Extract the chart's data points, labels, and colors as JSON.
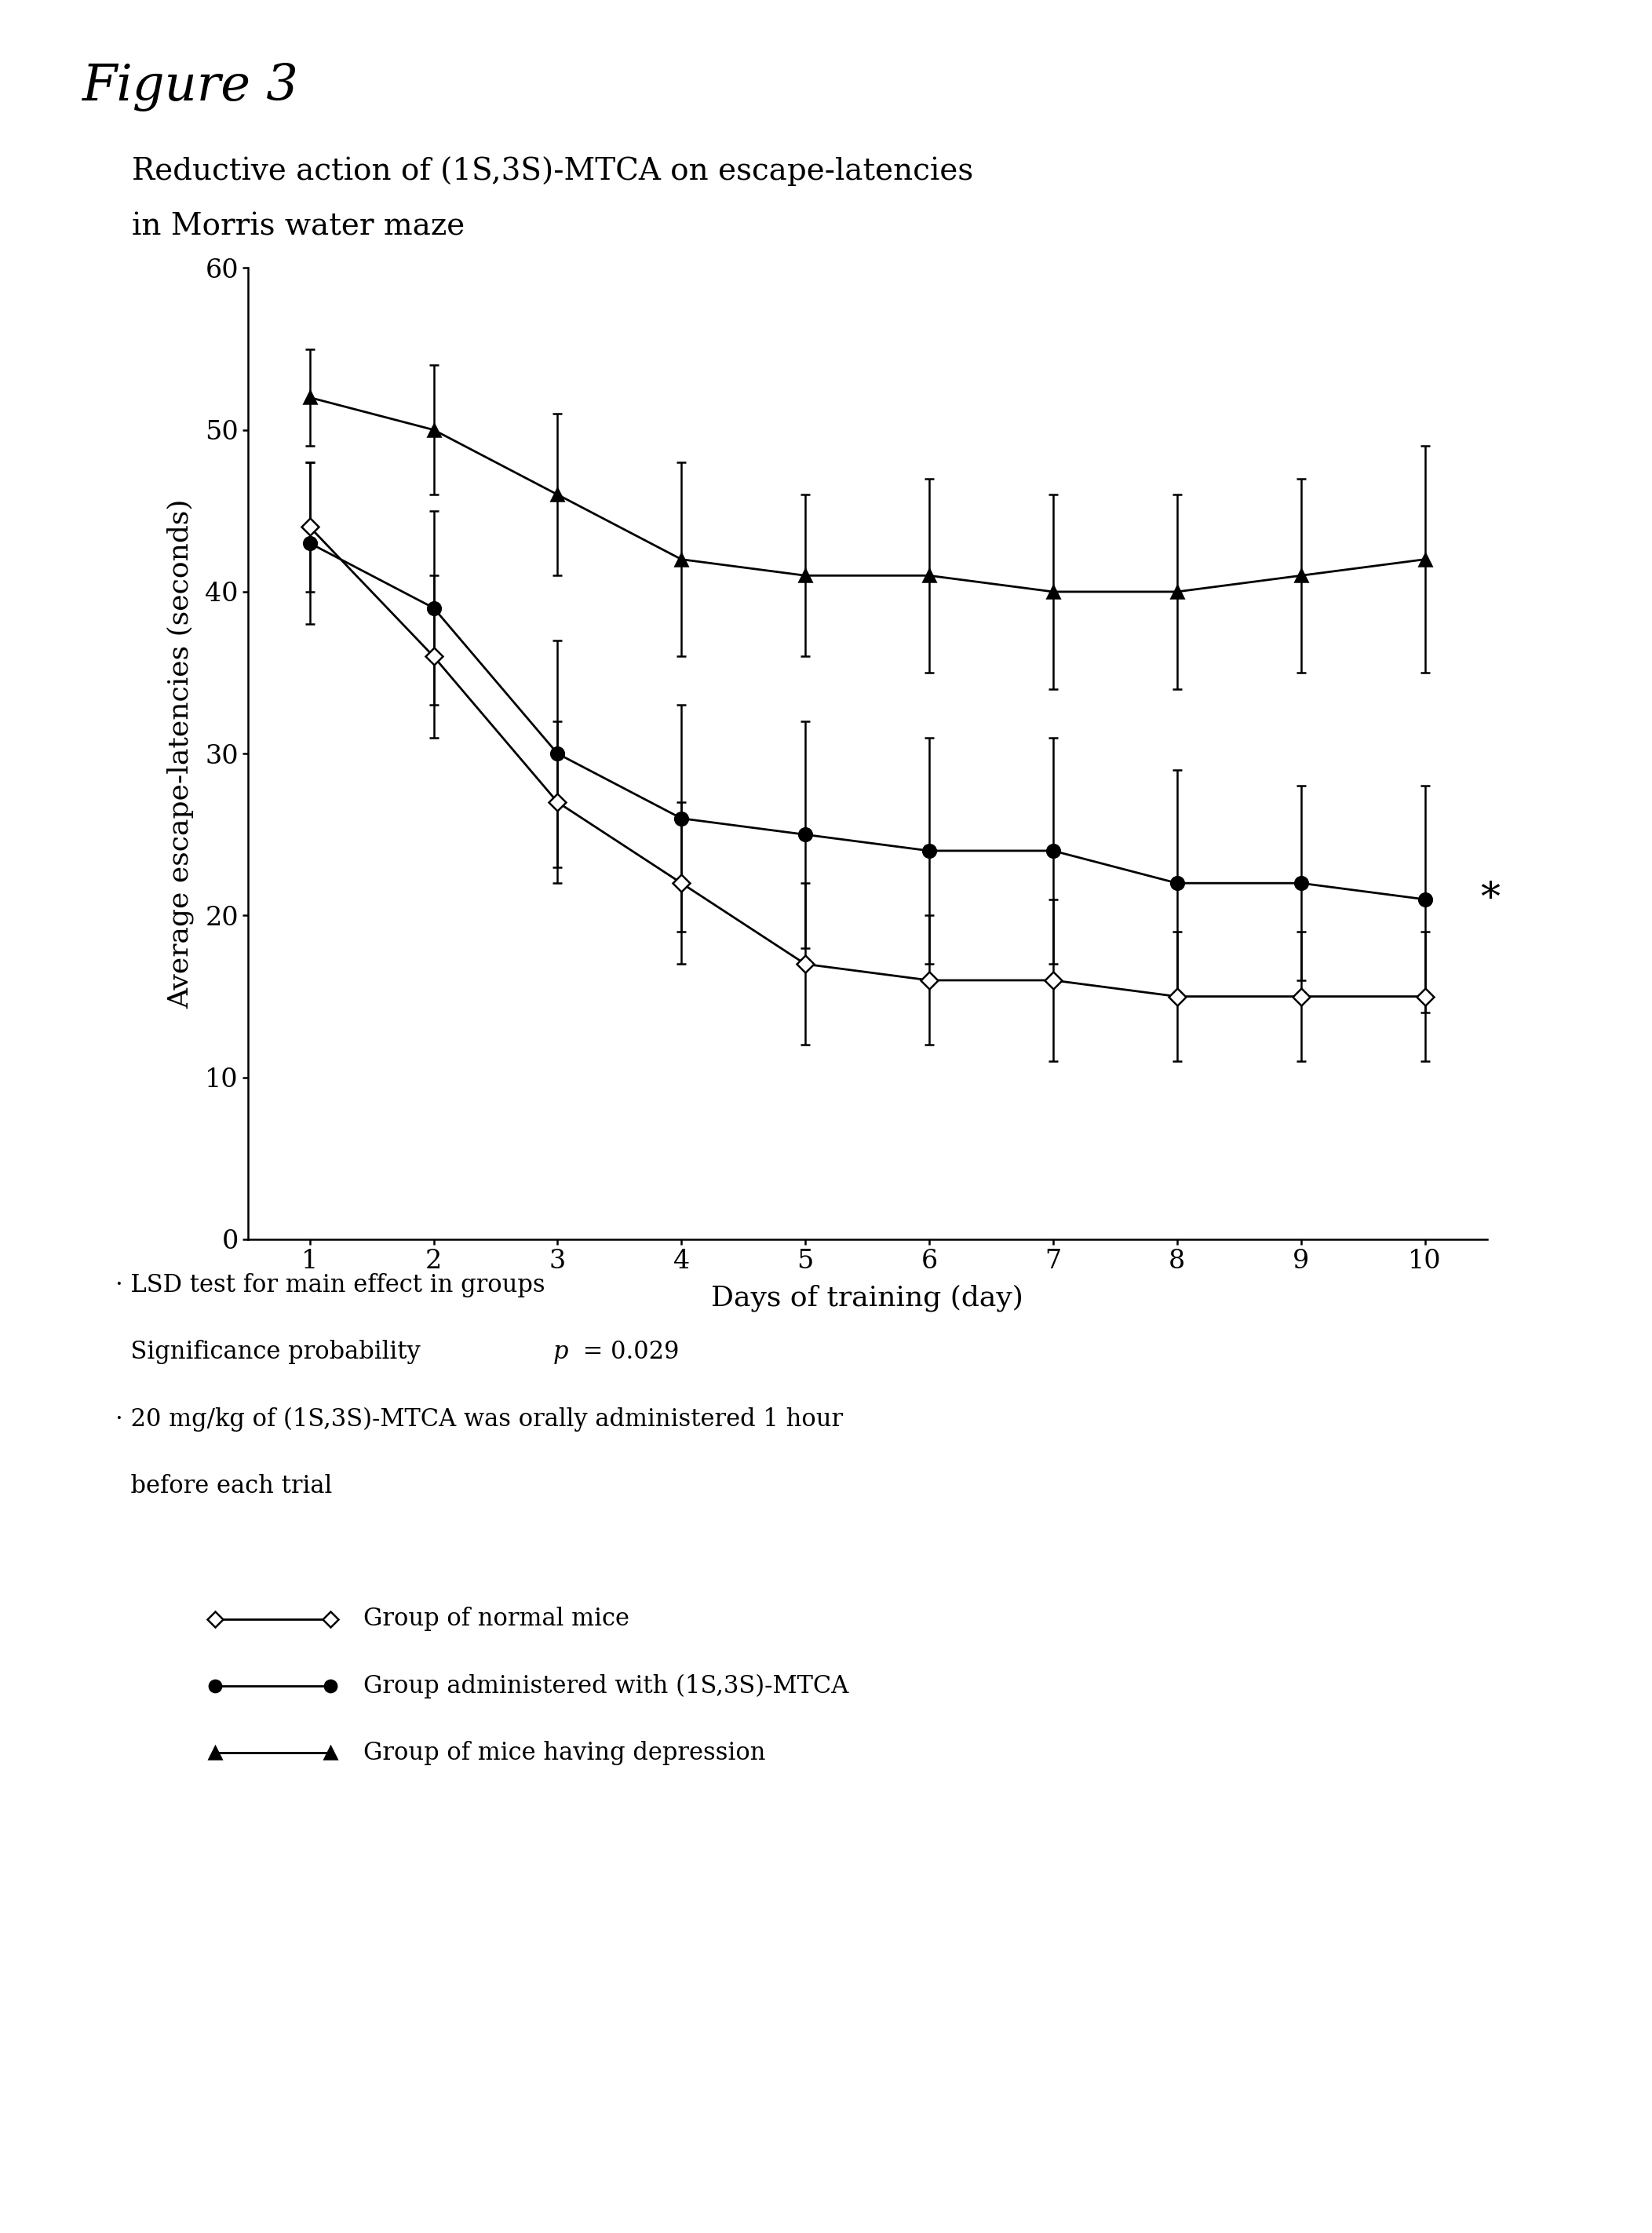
{
  "days": [
    1,
    2,
    3,
    4,
    5,
    6,
    7,
    8,
    9,
    10
  ],
  "normal_mice": [
    44,
    36,
    27,
    22,
    17,
    16,
    16,
    15,
    15,
    15
  ],
  "normal_mice_err": [
    4,
    5,
    5,
    5,
    5,
    4,
    5,
    4,
    4,
    4
  ],
  "mtca_group": [
    43,
    39,
    30,
    26,
    25,
    24,
    24,
    22,
    22,
    21
  ],
  "mtca_group_err": [
    5,
    6,
    7,
    7,
    7,
    7,
    7,
    7,
    6,
    7
  ],
  "depression_group": [
    52,
    50,
    46,
    42,
    41,
    41,
    40,
    40,
    41,
    42
  ],
  "depression_group_err": [
    3,
    4,
    5,
    6,
    5,
    6,
    6,
    6,
    6,
    7
  ],
  "figure_label": "Figure 3",
  "subtitle_line1": "Reductive action of (1S,3S)-MTCA on escape-latencies",
  "subtitle_line2": "in Morris water maze",
  "xlabel": "Days of training (day)",
  "ylabel": "Average escape-latencies (seconds)",
  "ylim": [
    0,
    60
  ],
  "yticks": [
    0,
    10,
    20,
    30,
    40,
    50,
    60
  ],
  "note1a": "· LSD test for main effect in groups",
  "note1b": "  Significance probability ",
  "note1b_italic": "p",
  "note1b_rest": " = 0.029",
  "note2a": "· 20 mg/kg of (1S,3S)-MTCA was orally administered 1 hour",
  "note2b": "  before each trial",
  "legend1": "Group of normal mice",
  "legend2": "Group administered with (1S,3S)-MTCA",
  "legend3": "Group of mice having depression",
  "star_annotation": "*",
  "bg_color": "#ffffff",
  "line_color": "#000000"
}
